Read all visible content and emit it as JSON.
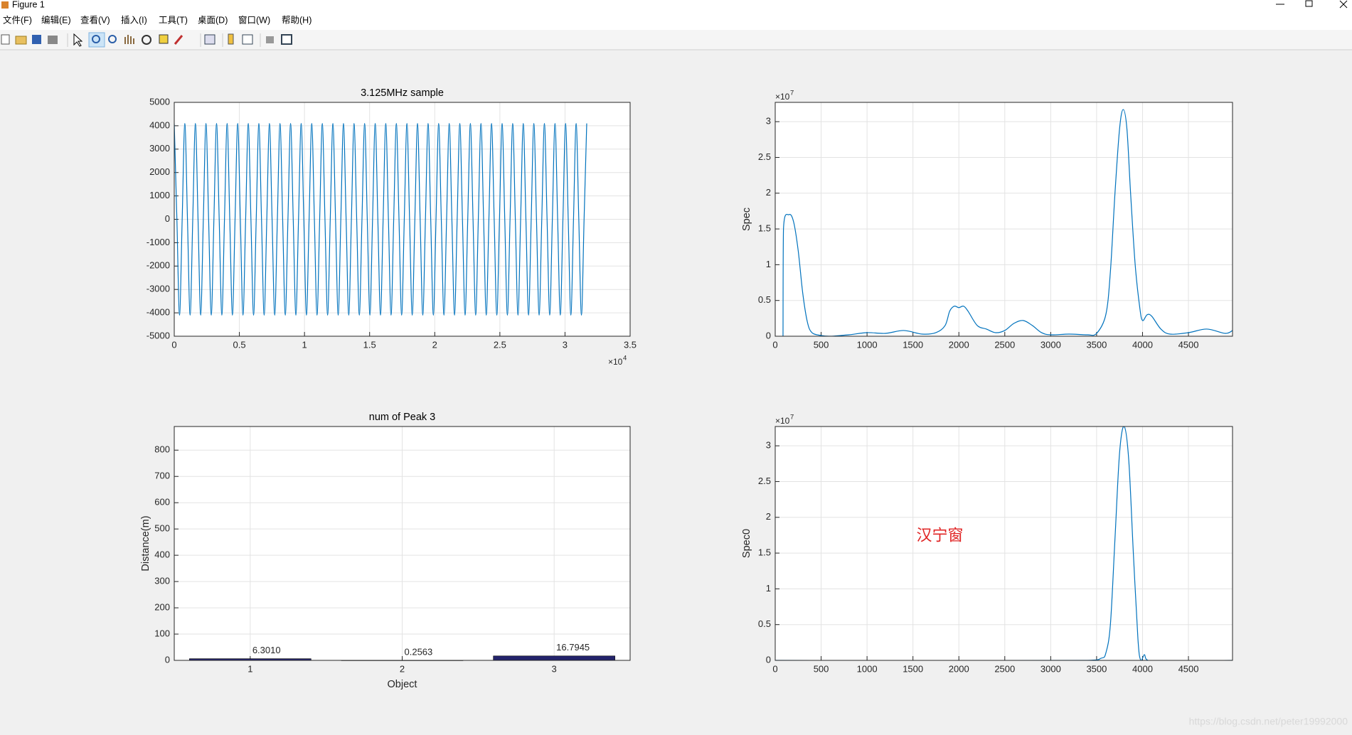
{
  "window": {
    "title": "Figure 1"
  },
  "menu": [
    "文件(F)",
    "编辑(E)",
    "查看(V)",
    "插入(I)",
    "工具(T)",
    "桌面(D)",
    "窗口(W)",
    "帮助(H)"
  ],
  "chart_data": [
    {
      "type": "line",
      "title": "3.125MHz sample",
      "color": "#0072bd",
      "grid": true,
      "x_multiplier": {
        "base": "×10",
        "power": "4"
      },
      "x": [
        0,
        203,
        406,
        609,
        812,
        1015,
        1218,
        1421,
        1624,
        1827,
        2030,
        2233,
        2436,
        2639,
        2842,
        3045,
        3248,
        3451,
        3654,
        3857,
        4060,
        4263,
        4466,
        4669,
        4872,
        5075,
        5278,
        5481,
        5684,
        5887,
        6090,
        6293,
        6496,
        6699,
        6902,
        7105,
        7308,
        7511,
        7714,
        7917,
        8120,
        8323,
        8526,
        8729,
        8932,
        9135,
        9338,
        9541,
        9744,
        9947,
        10150,
        10353,
        10556,
        10759,
        10962,
        11165,
        11368,
        11571,
        11774,
        11977,
        12180,
        12383,
        12586,
        12789,
        12992,
        13195,
        13398,
        13601,
        13804,
        14007,
        14210,
        14413,
        14616,
        14819,
        15022,
        15225,
        15428,
        15631,
        15834,
        16037,
        16240,
        16443,
        16646,
        16849,
        17052,
        17255,
        17458,
        17661,
        17864,
        18067,
        18270,
        18473,
        18676,
        18879,
        19082,
        19285,
        19488,
        19691,
        19894,
        20097,
        20300,
        20503,
        20706,
        20909,
        21112,
        21315,
        21518,
        21721,
        21924,
        22127,
        22330,
        22533,
        22736,
        22939,
        23142,
        23345,
        23548,
        23751,
        23954,
        24157,
        24360,
        24563,
        24766,
        24969,
        25172,
        25375,
        25578,
        25781,
        25984,
        26187,
        26390,
        26593,
        26796,
        26999,
        27202,
        27405,
        27608,
        27811,
        28014,
        28217,
        28420,
        28623,
        28826,
        29029,
        29232,
        29435,
        29638,
        29841,
        30044,
        30247,
        30450,
        30653,
        30856,
        31059,
        31262,
        31465,
        31668
      ],
      "values": [
        4100,
        0,
        -4100,
        0,
        4100,
        0,
        -4100,
        0,
        4100,
        0,
        -4100,
        0,
        4100,
        0,
        -4100,
        0,
        4100,
        0,
        -4100,
        0,
        4100,
        0,
        -4100,
        0,
        4100,
        0,
        -4100,
        0,
        4100,
        0,
        -4100,
        0,
        4100,
        0,
        -4100,
        0,
        4100,
        0,
        -4100,
        0,
        4100,
        0,
        -4100,
        0,
        4100,
        0,
        -4100,
        0,
        4100,
        0,
        -4100,
        0,
        4100,
        0,
        -4100,
        0,
        4100,
        0,
        -4100,
        0,
        4100,
        0,
        -4100,
        0,
        4100,
        0,
        -4100,
        0,
        4100,
        0,
        -4100,
        0,
        4100,
        0,
        -4100,
        0,
        4100,
        0,
        -4100,
        0,
        4100,
        0,
        -4100,
        0,
        4100,
        0,
        -4100,
        0,
        4100,
        0,
        -4100,
        0,
        4100,
        0,
        -4100,
        0,
        4100,
        0,
        -4100,
        0,
        4100,
        0,
        -4100,
        0,
        4100,
        0,
        -4100,
        0,
        4100,
        0,
        -4100,
        0,
        4100,
        0,
        -4100,
        0,
        4100,
        0,
        -4100,
        0,
        4100,
        0,
        -4100,
        0,
        4100,
        0,
        -4100,
        0,
        4100,
        0,
        -4100,
        0,
        4100,
        0,
        -4100,
        0,
        4100,
        0,
        -4100,
        0,
        4100,
        0,
        -4100,
        0,
        4100,
        0,
        -4100,
        0,
        4100,
        0,
        -4100,
        0,
        4100,
        0,
        -4100,
        0,
        4100
      ],
      "xlim": [
        0,
        35000
      ],
      "xticks": [
        0,
        {
          "value": 5000,
          "label": "0.5"
        },
        {
          "value": 10000,
          "label": "1"
        },
        {
          "value": 15000,
          "label": "1.5"
        },
        {
          "value": 20000,
          "label": "2"
        },
        {
          "value": 25000,
          "label": "2.5"
        },
        {
          "value": 30000,
          "label": "3"
        },
        {
          "value": 35000,
          "label": "3.5"
        }
      ],
      "ylim": [
        -5000,
        5000
      ],
      "yticks": [
        -5000,
        -4000,
        -3000,
        -2000,
        -1000,
        0,
        1000,
        2000,
        3000,
        4000,
        5000
      ]
    },
    {
      "type": "line",
      "ylabel": "Spec",
      "color": "#0072bd",
      "grid": true,
      "y_multiplier": {
        "base": "×10",
        "power": "7"
      },
      "x": [
        85,
        90,
        150,
        200,
        250,
        300,
        350,
        400,
        500,
        600,
        800,
        1000,
        1200,
        1400,
        1600,
        1750,
        1850,
        1900,
        1950,
        2000,
        2050,
        2100,
        2200,
        2300,
        2400,
        2500,
        2600,
        2700,
        2800,
        2900,
        3000,
        3200,
        3400,
        3500,
        3600,
        3650,
        3700,
        3750,
        3790,
        3830,
        3870,
        3920,
        3970,
        4000,
        4050,
        4100,
        4200,
        4300,
        4500,
        4700,
        4900,
        4980
      ],
      "values": [
        0,
        15000000,
        17000000,
        16000000,
        12000000,
        6000000,
        2000000,
        500000,
        100000,
        0,
        200000,
        500000,
        400000,
        800000,
        300000,
        500000,
        1500000,
        3500000,
        4200000,
        4000000,
        4200000,
        3500000,
        1500000,
        1000000,
        500000,
        800000,
        1800000,
        2200000,
        1500000,
        500000,
        200000,
        300000,
        200000,
        400000,
        3000000,
        9000000,
        20000000,
        29000000,
        31700000,
        29000000,
        20000000,
        10000000,
        4000000,
        2200000,
        3000000,
        2800000,
        1000000,
        300000,
        500000,
        1000000,
        400000,
        800000
      ],
      "xlim": [
        0,
        4980
      ],
      "xticks": [
        0,
        500,
        1000,
        1500,
        2000,
        2500,
        3000,
        3500,
        4000,
        4500
      ],
      "ylim": [
        0,
        32700000
      ],
      "yticks": [
        0,
        {
          "value": 5000000,
          "label": "0.5"
        },
        {
          "value": 10000000,
          "label": "1"
        },
        {
          "value": 15000000,
          "label": "1.5"
        },
        {
          "value": 20000000,
          "label": "2"
        },
        {
          "value": 25000000,
          "label": "2.5"
        },
        {
          "value": 30000000,
          "label": "3"
        }
      ]
    },
    {
      "type": "bar",
      "title": "num of Peak 3",
      "xlabel": "Object",
      "ylabel": "Distance(m)",
      "color": "#23236b",
      "grid": true,
      "x": [
        1,
        2,
        3
      ],
      "values": [
        6.301,
        0.2563,
        16.7945
      ],
      "value_labels": [
        "6.3010",
        "0.2563",
        "16.7945"
      ],
      "xlim": [
        0.5,
        3.5
      ],
      "xticks": [
        1,
        2,
        3
      ],
      "ylim": [
        0,
        890
      ],
      "yticks": [
        0,
        100,
        200,
        300,
        400,
        500,
        600,
        700,
        800
      ]
    },
    {
      "type": "line",
      "ylabel": "Spec0",
      "color": "#0072bd",
      "grid": true,
      "y_multiplier": {
        "base": "×10",
        "power": "7"
      },
      "annotation": "汉宁窗",
      "x": [
        0,
        3400,
        3550,
        3600,
        3650,
        3700,
        3750,
        3800,
        3850,
        3900,
        3950,
        3980,
        4020,
        4060,
        4980
      ],
      "values": [
        0,
        0,
        300000,
        1000000,
        5000000,
        17000000,
        29000000,
        32700000,
        28000000,
        15000000,
        3000000,
        0,
        800000,
        0,
        0
      ],
      "xlim": [
        0,
        4980
      ],
      "xticks": [
        0,
        500,
        1000,
        1500,
        2000,
        2500,
        3000,
        3500,
        4000,
        4500
      ],
      "ylim": [
        0,
        32700000
      ],
      "yticks": [
        0,
        {
          "value": 5000000,
          "label": "0.5"
        },
        {
          "value": 10000000,
          "label": "1"
        },
        {
          "value": 15000000,
          "label": "1.5"
        },
        {
          "value": 20000000,
          "label": "2"
        },
        {
          "value": 25000000,
          "label": "2.5"
        },
        {
          "value": 30000000,
          "label": "3"
        }
      ]
    }
  ],
  "watermark": "https://blog.csdn.net/peter19992000"
}
